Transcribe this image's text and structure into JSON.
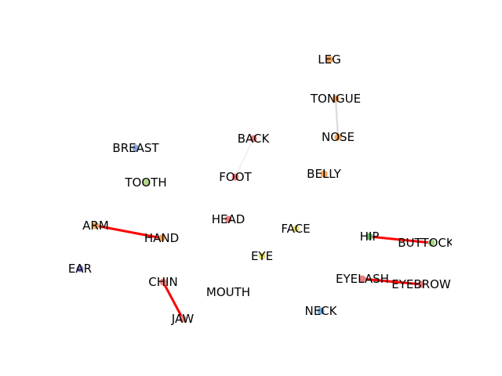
{
  "graph": {
    "nodes": [
      {
        "id": "LEG",
        "label": "LEG",
        "color": "#f4a259"
      },
      {
        "id": "TONGUE",
        "label": "TONGUE",
        "color": "#f4a259"
      },
      {
        "id": "NOSE",
        "label": "NOSE",
        "color": "#f4a259"
      },
      {
        "id": "BACK",
        "label": "BACK",
        "color": "#f08080"
      },
      {
        "id": "BREAST",
        "label": "BREAST",
        "color": "#8fa8d8"
      },
      {
        "id": "BELLY",
        "label": "BELLY",
        "color": "#f4a259"
      },
      {
        "id": "FOOT",
        "label": "FOOT",
        "color": "#f08080"
      },
      {
        "id": "TOOTH",
        "label": "TOOTH",
        "color": "#b5d98a"
      },
      {
        "id": "HEAD",
        "label": "HEAD",
        "color": "#f08080"
      },
      {
        "id": "FACE",
        "label": "FACE",
        "color": "#e8e070"
      },
      {
        "id": "ARM",
        "label": "ARM",
        "color": "#f4a259"
      },
      {
        "id": "HAND",
        "label": "HAND",
        "color": "#f4a259"
      },
      {
        "id": "HIP",
        "label": "HIP",
        "color": "#6fbf6f"
      },
      {
        "id": "BUTTOCK",
        "label": "BUTTOCK",
        "color": "#a6d68a"
      },
      {
        "id": "EYE",
        "label": "EYE",
        "color": "#e8e070"
      },
      {
        "id": "EAR",
        "label": "EAR",
        "color": "#8f8fd8"
      },
      {
        "id": "CHIN",
        "label": "CHIN",
        "color": "#f08080"
      },
      {
        "id": "EYELASH",
        "label": "EYELASH",
        "color": "#f08080"
      },
      {
        "id": "EYEBROW",
        "label": "EYEBROW",
        "color": "#f08080"
      },
      {
        "id": "MOUTH",
        "label": "MOUTH",
        "color": "#f0f0f0"
      },
      {
        "id": "NECK",
        "label": "NECK",
        "color": "#6fa8dc"
      },
      {
        "id": "JAW",
        "label": "JAW",
        "color": "#f08080"
      }
    ],
    "edges": [
      {
        "source": "ARM",
        "target": "HAND",
        "color": "#ff0000",
        "strength": "strong"
      },
      {
        "source": "CHIN",
        "target": "JAW",
        "color": "#ff0000",
        "strength": "strong"
      },
      {
        "source": "HIP",
        "target": "BUTTOCK",
        "color": "#ff0000",
        "strength": "strong"
      },
      {
        "source": "EYELASH",
        "target": "EYEBROW",
        "color": "#ff0000",
        "strength": "strong"
      },
      {
        "source": "TONGUE",
        "target": "NOSE",
        "color": "#dddddd",
        "strength": "weak"
      },
      {
        "source": "BACK",
        "target": "FOOT",
        "color": "#eeeeee",
        "strength": "faint"
      }
    ]
  }
}
